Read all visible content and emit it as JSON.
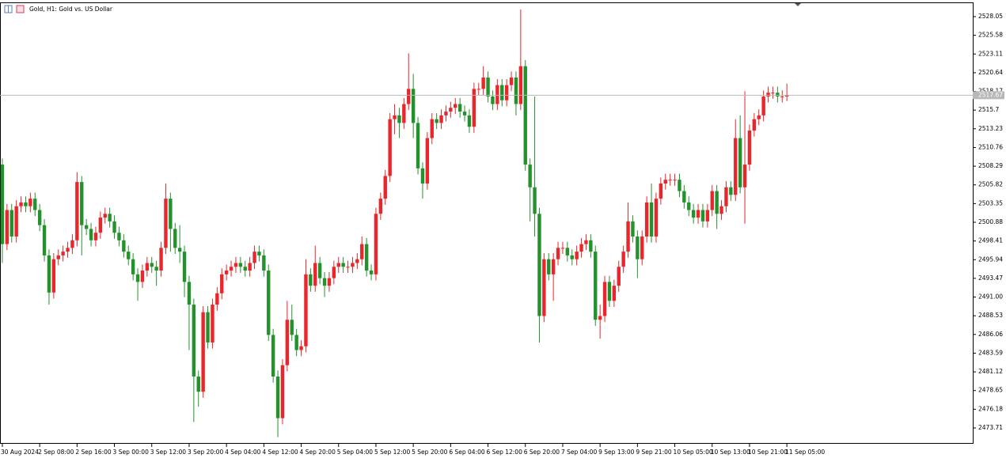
{
  "chart_data": {
    "type": "candlestick",
    "title": "Gold, H1:  Gold vs. US Dollar",
    "up_color": "#e8262b",
    "down_color": "#23922c",
    "current_price": 2517.67,
    "ylim": [
      2471.62,
      2529.93
    ],
    "yticks": [
      2473.71,
      2476.18,
      2478.65,
      2481.12,
      2483.59,
      2486.06,
      2488.53,
      {
        "value": 2491,
        "label": "2491.00"
      },
      2493.47,
      2495.94,
      2498.41,
      2500.88,
      2503.35,
      2505.82,
      2508.29,
      2510.76,
      2513.23,
      2515.7,
      2518.17,
      2520.64,
      2523.11,
      2525.58,
      2528.05
    ],
    "categories": [
      "30 Aug 2024",
      null,
      null,
      null,
      null,
      null,
      null,
      null,
      "2 Sep 08:00",
      null,
      null,
      null,
      null,
      null,
      null,
      null,
      "2 Sep 16:00",
      null,
      null,
      null,
      null,
      null,
      null,
      null,
      "3 Sep 00:00",
      null,
      null,
      null,
      null,
      null,
      null,
      null,
      "3 Sep 12:00",
      null,
      null,
      null,
      null,
      null,
      null,
      null,
      "3 Sep 20:00",
      null,
      null,
      null,
      null,
      null,
      null,
      null,
      "4 Sep 04:00",
      null,
      null,
      null,
      null,
      null,
      null,
      null,
      "4 Sep 12:00",
      null,
      null,
      null,
      null,
      null,
      null,
      null,
      "4 Sep 20:00",
      null,
      null,
      null,
      null,
      null,
      null,
      null,
      "5 Sep 04:00",
      null,
      null,
      null,
      null,
      null,
      null,
      null,
      "5 Sep 12:00",
      null,
      null,
      null,
      null,
      null,
      null,
      null,
      "5 Sep 20:00",
      null,
      null,
      null,
      null,
      null,
      null,
      null,
      "6 Sep 04:00",
      null,
      null,
      null,
      null,
      null,
      null,
      null,
      "6 Sep 12:00",
      null,
      null,
      null,
      null,
      null,
      null,
      null,
      "6 Sep 20:00",
      null,
      null,
      null,
      null,
      null,
      null,
      null,
      "7 Sep 04:00",
      null,
      null,
      null,
      null,
      null,
      null,
      null,
      "9 Sep 13:00",
      null,
      null,
      null,
      null,
      null,
      null,
      null,
      "9 Sep 21:00",
      null,
      null,
      null,
      null,
      null,
      null,
      null,
      "10 Sep 05:00",
      null,
      null,
      null,
      null,
      null,
      null,
      null,
      "10 Sep 13:00",
      null,
      null,
      null,
      null,
      null,
      null,
      null,
      "10 Sep 21:00",
      null,
      null,
      null,
      null,
      null,
      null,
      null,
      "11 Sep 05:00"
    ],
    "ohlc": [
      [
        2508.5,
        2509.3,
        2495.5,
        2498.0
      ],
      [
        2498.0,
        2503.3,
        2497.2,
        2502.5
      ],
      [
        2502.5,
        2503.3,
        2498.2,
        2499.0
      ],
      [
        2499.0,
        2503.8,
        2498.2,
        2503.0
      ],
      [
        2503.0,
        2504.3,
        2502.2,
        2503.5
      ],
      [
        2503.5,
        2504.3,
        2502.2,
        2503.0
      ],
      [
        2503.0,
        2504.8,
        2502.2,
        2504.0
      ],
      [
        2504.0,
        2504.8,
        2501.7,
        2502.5
      ],
      [
        2502.5,
        2503.3,
        2499.7,
        2500.5
      ],
      [
        2500.5,
        2501.3,
        2495.7,
        2496.5
      ],
      [
        2496.5,
        2497.3,
        2490.0,
        2491.6
      ],
      [
        2491.6,
        2496.8,
        2490.8,
        2496.0
      ],
      [
        2496.0,
        2497.3,
        2495.2,
        2496.5
      ],
      [
        2496.5,
        2497.8,
        2495.7,
        2497.0
      ],
      [
        2497.0,
        2498.3,
        2496.2,
        2497.5
      ],
      [
        2497.5,
        2499.3,
        2496.7,
        2498.5
      ],
      [
        2498.5,
        2507.5,
        2497.7,
        2506.2
      ],
      [
        2506.2,
        2507.0,
        2496.5,
        2500.5
      ],
      [
        2500.5,
        2501.3,
        2499.2,
        2500.0
      ],
      [
        2500.0,
        2500.8,
        2497.7,
        2498.5
      ],
      [
        2498.5,
        2500.3,
        2497.7,
        2499.5
      ],
      [
        2499.5,
        2502.3,
        2498.7,
        2501.5
      ],
      [
        2501.5,
        2502.8,
        2500.7,
        2502.0
      ],
      [
        2502.0,
        2502.8,
        2500.2,
        2501.0
      ],
      [
        2501.0,
        2501.8,
        2498.7,
        2499.5
      ],
      [
        2499.5,
        2500.3,
        2497.7,
        2498.5
      ],
      [
        2498.5,
        2499.3,
        2496.2,
        2497.0
      ],
      [
        2497.0,
        2497.8,
        2495.2,
        2496.0
      ],
      [
        2496.0,
        2496.8,
        2493.2,
        2494.0
      ],
      [
        2494.0,
        2494.8,
        2490.5,
        2493.0
      ],
      [
        2493.0,
        2495.3,
        2492.2,
        2494.5
      ],
      [
        2494.5,
        2496.3,
        2493.7,
        2495.5
      ],
      [
        2495.5,
        2496.3,
        2494.2,
        2495.0
      ],
      [
        2495.0,
        2495.8,
        2492.5,
        2494.5
      ],
      [
        2494.5,
        2498.3,
        2493.7,
        2497.5
      ],
      [
        2497.5,
        2506.0,
        2496.7,
        2504.0
      ],
      [
        2504.0,
        2504.8,
        2497.0,
        2500.0
      ],
      [
        2500.0,
        2500.8,
        2496.7,
        2497.5
      ],
      [
        2497.5,
        2500.5,
        2495.5,
        2497.0
      ],
      [
        2497.0,
        2497.8,
        2491.0,
        2493.0
      ],
      [
        2493.0,
        2493.8,
        2484.0,
        2490.0
      ],
      [
        2490.0,
        2490.8,
        2474.5,
        2480.5
      ],
      [
        2480.5,
        2481.3,
        2476.5,
        2478.5
      ],
      [
        2478.5,
        2489.8,
        2477.7,
        2489.0
      ],
      [
        2489.0,
        2489.8,
        2484.2,
        2485.0
      ],
      [
        2485.0,
        2490.8,
        2484.2,
        2490.0
      ],
      [
        2490.0,
        2492.3,
        2489.2,
        2491.5
      ],
      [
        2491.5,
        2494.8,
        2490.7,
        2494.0
      ],
      [
        2494.0,
        2495.3,
        2493.2,
        2494.5
      ],
      [
        2494.5,
        2495.8,
        2493.7,
        2495.0
      ],
      [
        2495.0,
        2496.3,
        2494.2,
        2495.5
      ],
      [
        2495.5,
        2496.3,
        2494.2,
        2495.0
      ],
      [
        2495.0,
        2495.8,
        2493.7,
        2494.5
      ],
      [
        2494.5,
        2496.3,
        2493.7,
        2495.5
      ],
      [
        2495.5,
        2497.8,
        2494.7,
        2497.0
      ],
      [
        2497.0,
        2497.8,
        2495.7,
        2496.5
      ],
      [
        2496.5,
        2497.3,
        2493.7,
        2494.5
      ],
      [
        2494.5,
        2495.3,
        2485.2,
        2486.0
      ],
      [
        2486.0,
        2486.8,
        2479.7,
        2480.5
      ],
      [
        2480.5,
        2481.3,
        2472.5,
        2475.0
      ],
      [
        2475.0,
        2482.8,
        2474.2,
        2482.0
      ],
      [
        2482.0,
        2490.5,
        2481.2,
        2488.0
      ],
      [
        2488.0,
        2490.0,
        2485.2,
        2486.0
      ],
      [
        2486.0,
        2486.8,
        2483.2,
        2484.0
      ],
      [
        2484.0,
        2485.3,
        2483.2,
        2484.5
      ],
      [
        2484.5,
        2496.0,
        2483.7,
        2494.0
      ],
      [
        2494.0,
        2494.8,
        2491.7,
        2492.5
      ],
      [
        2492.5,
        2497.8,
        2491.7,
        2495.5
      ],
      [
        2495.5,
        2496.3,
        2492.7,
        2493.5
      ],
      [
        2493.5,
        2494.3,
        2491.0,
        2492.5
      ],
      [
        2492.5,
        2494.3,
        2491.7,
        2493.5
      ],
      [
        2493.5,
        2495.8,
        2492.7,
        2495.0
      ],
      [
        2495.0,
        2496.3,
        2494.2,
        2495.5
      ],
      [
        2495.5,
        2496.3,
        2494.2,
        2495.0
      ],
      [
        2495.0,
        2495.8,
        2494.2,
        2495.0
      ],
      [
        2495.0,
        2496.3,
        2494.2,
        2495.5
      ],
      [
        2495.5,
        2496.8,
        2494.7,
        2496.0
      ],
      [
        2496.0,
        2499.0,
        2495.2,
        2498.0
      ],
      [
        2498.0,
        2498.8,
        2493.7,
        2494.5
      ],
      [
        2494.5,
        2495.3,
        2493.2,
        2494.0
      ],
      [
        2494.0,
        2502.8,
        2493.2,
        2502.0
      ],
      [
        2502.0,
        2504.8,
        2501.2,
        2504.0
      ],
      [
        2504.0,
        2507.8,
        2503.2,
        2507.0
      ],
      [
        2507.0,
        2515.3,
        2506.2,
        2514.5
      ],
      [
        2514.5,
        2516.5,
        2512.5,
        2515.0
      ],
      [
        2515.0,
        2516.0,
        2512.0,
        2514.0
      ],
      [
        2514.0,
        2517.3,
        2513.2,
        2516.5
      ],
      [
        2516.5,
        2523.2,
        2515.7,
        2518.5
      ],
      [
        2518.5,
        2520.5,
        2512.0,
        2514.0
      ],
      [
        2514.0,
        2514.8,
        2507.2,
        2508.0
      ],
      [
        2508.0,
        2508.8,
        2504.0,
        2506.0
      ],
      [
        2506.0,
        2512.8,
        2505.2,
        2512.0
      ],
      [
        2512.0,
        2515.3,
        2511.2,
        2514.5
      ],
      [
        2514.5,
        2515.3,
        2513.2,
        2514.0
      ],
      [
        2514.0,
        2515.8,
        2513.2,
        2515.0
      ],
      [
        2515.0,
        2516.3,
        2514.2,
        2515.5
      ],
      [
        2515.5,
        2516.8,
        2514.7,
        2516.0
      ],
      [
        2516.0,
        2517.3,
        2515.2,
        2516.5
      ],
      [
        2516.5,
        2517.3,
        2514.7,
        2515.5
      ],
      [
        2515.5,
        2516.3,
        2514.2,
        2515.0
      ],
      [
        2515.0,
        2515.8,
        2512.7,
        2513.5
      ],
      [
        2513.5,
        2519.3,
        2512.7,
        2518.5
      ],
      [
        2518.5,
        2519.3,
        2517.7,
        2518.5
      ],
      [
        2518.5,
        2521.5,
        2517.7,
        2520.0
      ],
      [
        2520.0,
        2520.8,
        2516.7,
        2517.5
      ],
      [
        2517.5,
        2518.3,
        2515.7,
        2516.5
      ],
      [
        2516.5,
        2519.8,
        2515.7,
        2519.0
      ],
      [
        2519.0,
        2519.8,
        2516.2,
        2517.0
      ],
      [
        2517.0,
        2519.8,
        2516.2,
        2519.0
      ],
      [
        2519.0,
        2520.8,
        2518.2,
        2520.0
      ],
      [
        2520.0,
        2520.8,
        2515.0,
        2516.5
      ],
      [
        2516.5,
        2529.0,
        2515.7,
        2521.5
      ],
      [
        2521.5,
        2522.3,
        2507.7,
        2508.5
      ],
      [
        2508.5,
        2509.3,
        2501.0,
        2505.5
      ],
      [
        2505.5,
        2517.5,
        2499.0,
        2502.0
      ],
      [
        2502.0,
        2502.8,
        2485.0,
        2488.5
      ],
      [
        2488.5,
        2496.8,
        2487.7,
        2496.0
      ],
      [
        2496.0,
        2496.8,
        2493.2,
        2494.0
      ],
      [
        2494.0,
        2496.8,
        2490.5,
        2496.0
      ],
      [
        2496.0,
        2498.3,
        2495.2,
        2497.5
      ],
      [
        2497.5,
        2498.3,
        2496.7,
        2497.5
      ],
      [
        2497.5,
        2498.3,
        2495.7,
        2496.5
      ],
      [
        2496.5,
        2497.3,
        2495.2,
        2496.0
      ],
      [
        2496.0,
        2497.8,
        2495.2,
        2497.0
      ],
      [
        2497.0,
        2498.8,
        2496.2,
        2498.0
      ],
      [
        2498.0,
        2499.3,
        2497.2,
        2498.5
      ],
      [
        2498.5,
        2499.3,
        2496.2,
        2497.0
      ],
      [
        2497.0,
        2497.8,
        2487.2,
        2488.0
      ],
      [
        2488.0,
        2490.0,
        2485.5,
        2488.5
      ],
      [
        2488.5,
        2493.8,
        2487.7,
        2493.0
      ],
      [
        2493.0,
        2493.8,
        2489.7,
        2490.5
      ],
      [
        2490.5,
        2493.3,
        2489.7,
        2492.5
      ],
      [
        2492.5,
        2495.8,
        2491.7,
        2495.0
      ],
      [
        2495.0,
        2497.8,
        2494.2,
        2497.0
      ],
      [
        2497.0,
        2503.5,
        2496.2,
        2501.0
      ],
      [
        2501.0,
        2501.8,
        2498.2,
        2499.0
      ],
      [
        2499.0,
        2499.8,
        2493.5,
        2496.0
      ],
      [
        2496.0,
        2499.8,
        2495.2,
        2499.0
      ],
      [
        2499.0,
        2504.3,
        2498.2,
        2503.5
      ],
      [
        2503.5,
        2506.0,
        2498.2,
        2499.0
      ],
      [
        2499.0,
        2504.8,
        2498.2,
        2504.0
      ],
      [
        2504.0,
        2506.8,
        2503.2,
        2506.0
      ],
      [
        2506.0,
        2507.3,
        2505.2,
        2506.5
      ],
      [
        2506.5,
        2507.3,
        2505.7,
        2506.5
      ],
      [
        2506.5,
        2507.3,
        2505.7,
        2506.5
      ],
      [
        2506.5,
        2507.3,
        2504.2,
        2505.0
      ],
      [
        2505.0,
        2505.8,
        2502.7,
        2503.5
      ],
      [
        2503.5,
        2504.3,
        2501.7,
        2502.5
      ],
      [
        2502.5,
        2503.3,
        2500.7,
        2501.5
      ],
      [
        2501.5,
        2503.3,
        2500.7,
        2502.5
      ],
      [
        2502.5,
        2503.3,
        2500.2,
        2501.0
      ],
      [
        2501.0,
        2503.3,
        2500.2,
        2502.5
      ],
      [
        2502.5,
        2505.8,
        2501.7,
        2505.0
      ],
      [
        2505.0,
        2505.8,
        2500.0,
        2502.0
      ],
      [
        2502.0,
        2503.8,
        2501.2,
        2503.0
      ],
      [
        2503.0,
        2506.3,
        2502.2,
        2505.5
      ],
      [
        2505.5,
        2506.3,
        2503.7,
        2504.5
      ],
      [
        2504.5,
        2514.5,
        2503.7,
        2512.0
      ],
      [
        2512.0,
        2515.0,
        2504.7,
        2505.5
      ],
      [
        2505.5,
        2518.2,
        2500.7,
        2508.5
      ],
      [
        2508.5,
        2513.8,
        2507.7,
        2513.0
      ],
      [
        2513.0,
        2515.3,
        2512.2,
        2514.5
      ],
      [
        2514.5,
        2515.8,
        2513.7,
        2515.0
      ],
      [
        2515.0,
        2518.3,
        2514.2,
        2517.5
      ],
      [
        2517.5,
        2518.8,
        2516.7,
        2518.0
      ],
      [
        2518.0,
        2518.8,
        2517.2,
        2518.0
      ],
      [
        2518.0,
        2518.8,
        2516.7,
        2517.5
      ],
      [
        2517.5,
        2518.3,
        2516.7,
        2517.5
      ],
      [
        2517.5,
        2519.2,
        2516.9,
        2517.67
      ]
    ]
  }
}
